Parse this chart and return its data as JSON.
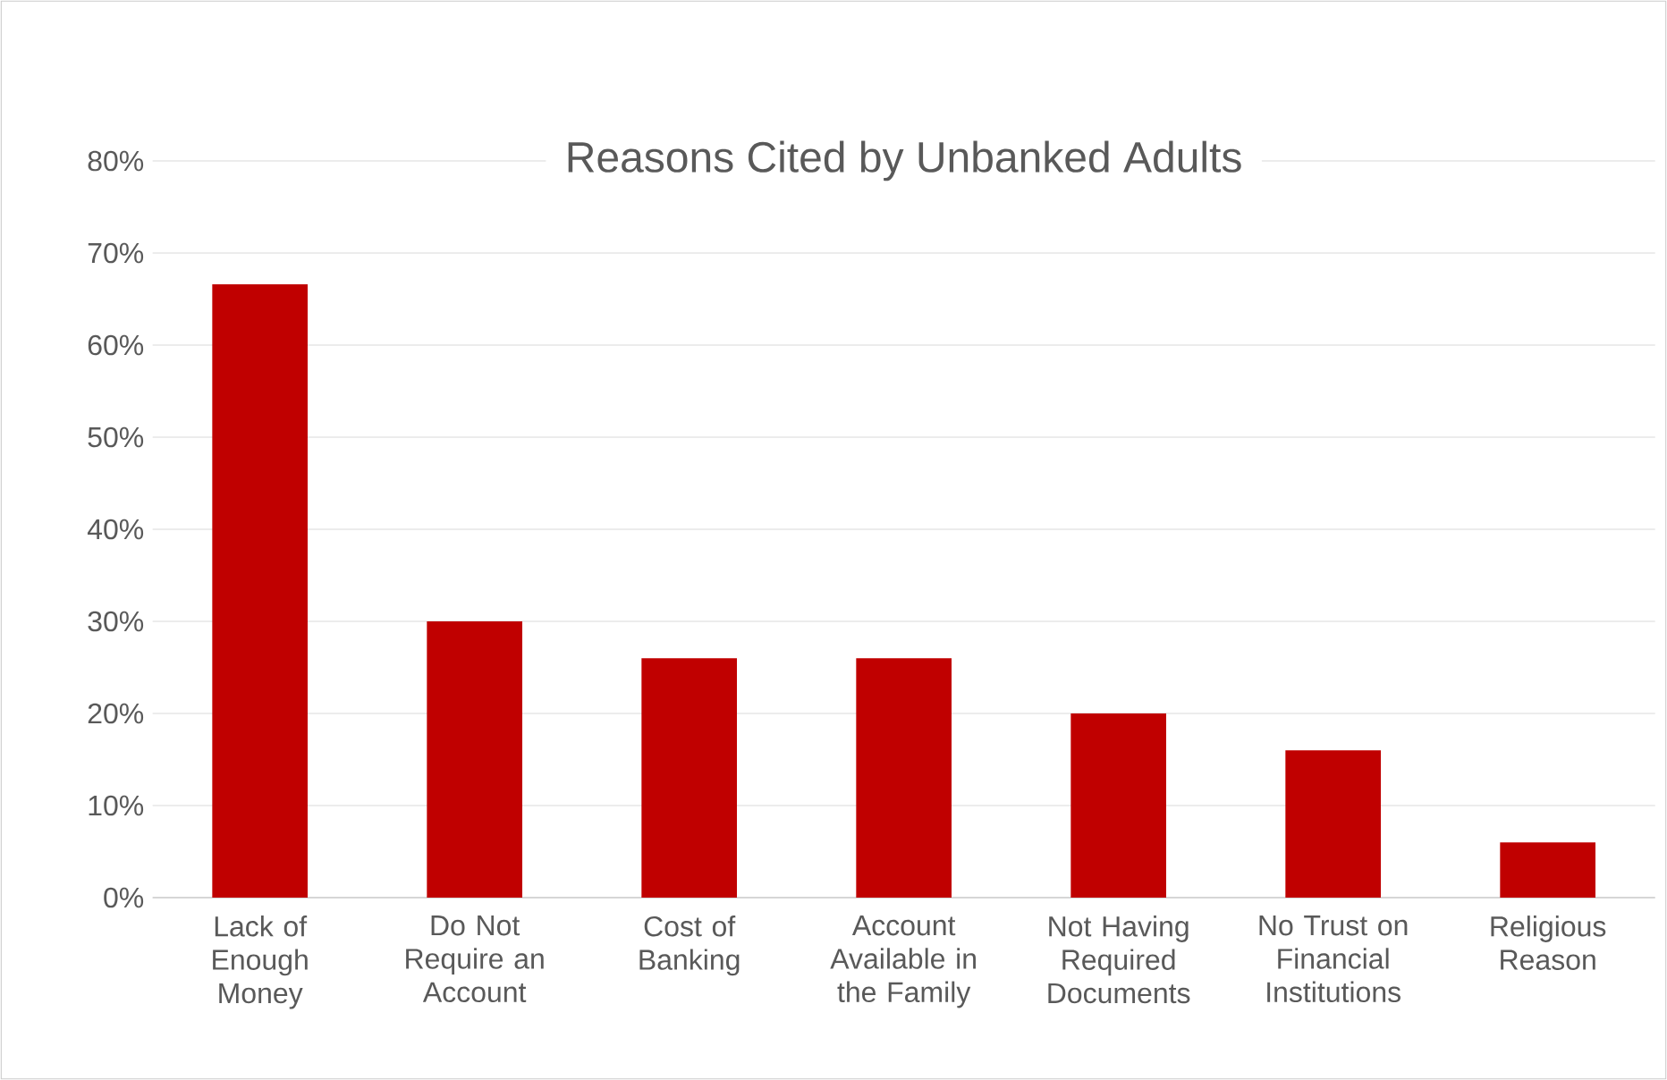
{
  "chart_data": {
    "type": "bar",
    "title": "Reasons Cited by Unbanked Adults",
    "categories": [
      "Lack of Enough Money",
      "Do Not Require an Account",
      "Cost of Banking",
      "Account Available in the Family",
      "Not Having Required Documents",
      "No Trust on Financial Institutions",
      "Religious Reason"
    ],
    "values": [
      66.6,
      30,
      26,
      26,
      20,
      16,
      6
    ],
    "color": "#c00000",
    "ylim": [
      0,
      80
    ],
    "yticks": [
      {
        "value": 0,
        "label": "0%"
      },
      {
        "value": 10,
        "label": "10%"
      },
      {
        "value": 20,
        "label": "20%"
      },
      {
        "value": 30,
        "label": "30%"
      },
      {
        "value": 40,
        "label": "40%"
      },
      {
        "value": 50,
        "label": "50%"
      },
      {
        "value": 60,
        "label": "60%"
      },
      {
        "value": 70,
        "label": "70%"
      },
      {
        "value": 80,
        "label": "80%"
      }
    ],
    "grid": "y"
  }
}
